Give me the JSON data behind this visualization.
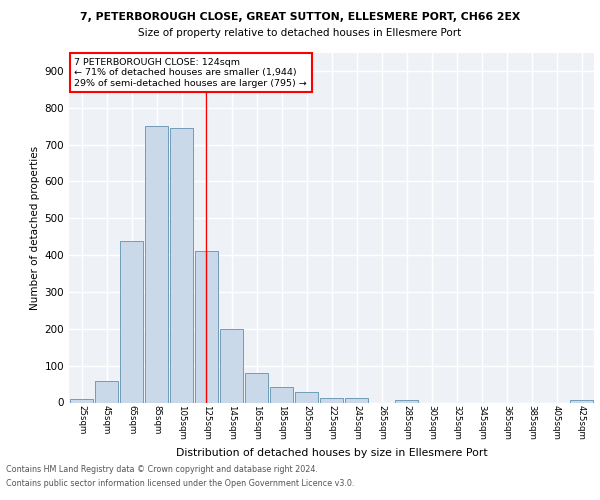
{
  "title1": "7, PETERBOROUGH CLOSE, GREAT SUTTON, ELLESMERE PORT, CH66 2EX",
  "title2": "Size of property relative to detached houses in Ellesmere Port",
  "xlabel": "Distribution of detached houses by size in Ellesmere Port",
  "ylabel": "Number of detached properties",
  "bin_labels": [
    "25sqm",
    "45sqm",
    "65sqm",
    "85sqm",
    "105sqm",
    "125sqm",
    "145sqm",
    "165sqm",
    "185sqm",
    "205sqm",
    "225sqm",
    "245sqm",
    "265sqm",
    "285sqm",
    "305sqm",
    "325sqm",
    "345sqm",
    "365sqm",
    "385sqm",
    "405sqm",
    "425sqm"
  ],
  "bar_values": [
    10,
    58,
    438,
    750,
    745,
    410,
    200,
    80,
    42,
    28,
    13,
    13,
    0,
    7,
    0,
    0,
    0,
    0,
    0,
    0,
    7
  ],
  "bar_color": "#c9d9ea",
  "bar_edge_color": "#6090b0",
  "ylim": [
    0,
    950
  ],
  "yticks": [
    0,
    100,
    200,
    300,
    400,
    500,
    600,
    700,
    800,
    900
  ],
  "annotation_text": "7 PETERBOROUGH CLOSE: 124sqm\n← 71% of detached houses are smaller (1,944)\n29% of semi-detached houses are larger (795) →",
  "footer1": "Contains HM Land Registry data © Crown copyright and database right 2024.",
  "footer2": "Contains public sector information licensed under the Open Government Licence v3.0.",
  "bg_color": "#eef2f7",
  "grid_color": "#ffffff",
  "property_line_bar_index": 4.97
}
